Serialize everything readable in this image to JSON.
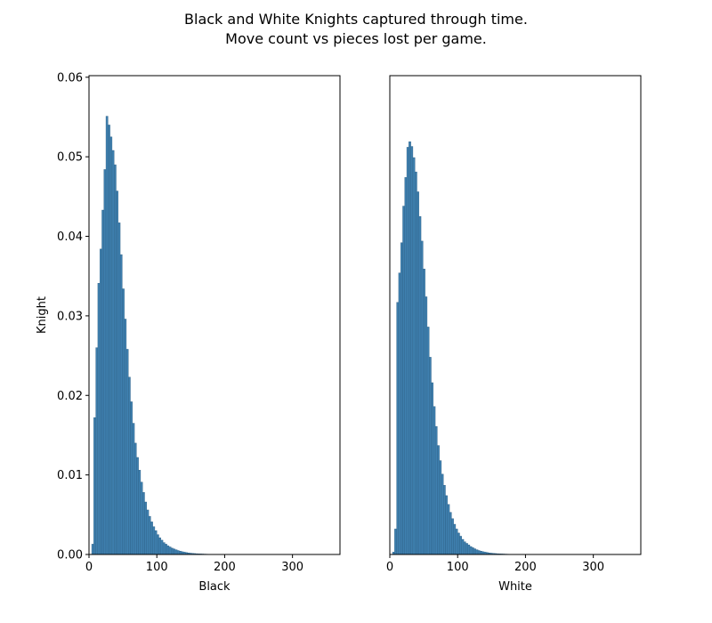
{
  "figure": {
    "title_line1": "Black and White Knights captured through time.",
    "title_line2": "Move count vs pieces lost per game."
  },
  "colors": {
    "bar_fill": "#3e7fae",
    "bar_edge": "#2d5f85",
    "axis": "#000000"
  },
  "chart_data": [
    {
      "type": "bar",
      "panel": "left",
      "xlabel": "Black",
      "ylabel": "Knight",
      "xlim": [
        0,
        370
      ],
      "ylim": [
        0,
        0.0602
      ],
      "xticks": [
        0,
        100,
        200,
        300
      ],
      "yticks": [
        0.0,
        0.01,
        0.02,
        0.03,
        0.04,
        0.05,
        0.06
      ],
      "ytick_labels": [
        "0.00",
        "0.01",
        "0.02",
        "0.03",
        "0.04",
        "0.05",
        "0.06"
      ],
      "bin_width": 3,
      "x_start": 4,
      "values": [
        0.0013,
        0.0172,
        0.026,
        0.0341,
        0.0384,
        0.0433,
        0.0484,
        0.0551,
        0.054,
        0.0525,
        0.0508,
        0.049,
        0.0457,
        0.0417,
        0.0377,
        0.0334,
        0.0296,
        0.0258,
        0.0223,
        0.0192,
        0.0165,
        0.014,
        0.0122,
        0.0106,
        0.0091,
        0.0078,
        0.0066,
        0.0056,
        0.0048,
        0.0041,
        0.0035,
        0.003,
        0.0025,
        0.0021,
        0.0018,
        0.0015,
        0.0013,
        0.0011,
        0.00095,
        0.0008,
        0.0007,
        0.0006,
        0.0005,
        0.00042,
        0.00035,
        0.0003,
        0.00025,
        0.0002,
        0.00017,
        0.00014,
        0.00012,
        0.0001,
        8e-05,
        7e-05,
        6e-05,
        5e-05,
        4e-05,
        3e-05,
        2e-05,
        2e-05,
        1e-05,
        1e-05
      ]
    },
    {
      "type": "bar",
      "panel": "right",
      "xlabel": "White",
      "ylabel": "",
      "xlim": [
        0,
        370
      ],
      "ylim": [
        0,
        0.0602
      ],
      "xticks": [
        0,
        100,
        200,
        300
      ],
      "yticks": [],
      "ytick_labels": [],
      "bin_width": 3,
      "x_start": 4,
      "values": [
        0.0003,
        0.0032,
        0.0317,
        0.0354,
        0.0392,
        0.0438,
        0.0474,
        0.0512,
        0.0519,
        0.0513,
        0.0499,
        0.0481,
        0.0456,
        0.0425,
        0.0394,
        0.0359,
        0.0324,
        0.0286,
        0.0248,
        0.0216,
        0.0186,
        0.0161,
        0.0137,
        0.0118,
        0.0101,
        0.0087,
        0.0074,
        0.0063,
        0.0053,
        0.0045,
        0.0038,
        0.0032,
        0.0027,
        0.0023,
        0.0019,
        0.0016,
        0.0014,
        0.0012,
        0.001,
        0.00085,
        0.00072,
        0.0006,
        0.0005,
        0.00042,
        0.00035,
        0.0003,
        0.00025,
        0.0002,
        0.00017,
        0.00014,
        0.00012,
        0.0001,
        8e-05,
        7e-05,
        6e-05,
        5e-05,
        4e-05,
        3e-05,
        2e-05,
        2e-05,
        1e-05,
        1e-05
      ]
    }
  ]
}
